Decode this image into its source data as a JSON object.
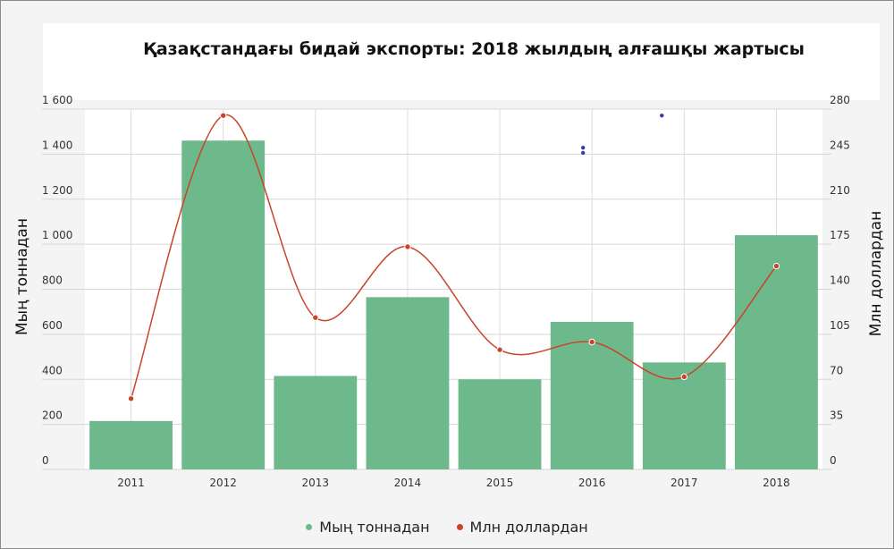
{
  "chart_data": {
    "type": "bar",
    "title": "Қазақстандағы бидай экспорты: 2018 жылдың алғашқы жартысы",
    "categories": [
      "2011",
      "2012",
      "2013",
      "2014",
      "2015",
      "2016",
      "2017",
      "2018"
    ],
    "ylabel_left": "Мың тоннадан",
    "ylabel_right": "Млн доллардан",
    "ylim_left": [
      0,
      1600
    ],
    "ylim_right": [
      0,
      280
    ],
    "yticks_left": [
      "0",
      "200",
      "400",
      "600",
      "800",
      "1 000",
      "1 200",
      "1 400",
      "1 600"
    ],
    "yticks_right": [
      "0",
      "35",
      "70",
      "105",
      "140",
      "175",
      "210",
      "245",
      "280"
    ],
    "grid": true,
    "legend_position": "bottom",
    "series": [
      {
        "name": "Мың тоннадан",
        "type": "bar",
        "axis": "left",
        "color": "#6db98b",
        "values": [
          215,
          1460,
          415,
          765,
          400,
          655,
          475,
          1040
        ]
      },
      {
        "name": "Млн доллардан",
        "type": "line",
        "axis": "right",
        "color": "#c8442a",
        "values": [
          55,
          275,
          118,
          173,
          93,
          99,
          72,
          158
        ]
      }
    ],
    "extra_points": [
      {
        "x": "2016",
        "y_right": 250,
        "color": "#3a3ab0"
      },
      {
        "x": "2016",
        "y_right": 246,
        "color": "#3a3ab0"
      },
      {
        "x": "2017",
        "y_right": 275,
        "color": "#3a3ab0"
      }
    ]
  }
}
